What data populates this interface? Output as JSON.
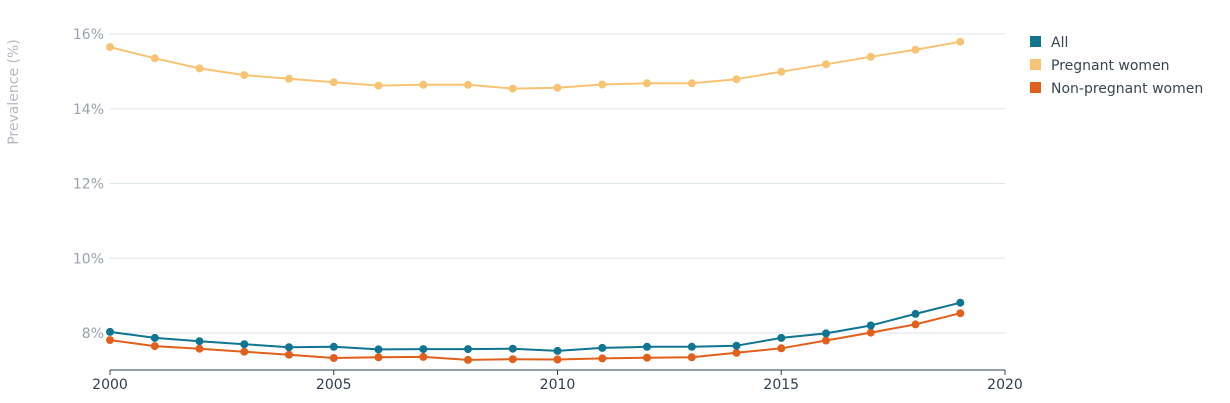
{
  "chart_data": {
    "type": "line",
    "title": "",
    "xlabel": "",
    "ylabel": "Prevalence (%)",
    "xlim": [
      2000,
      2020
    ],
    "ylim": [
      7,
      16.5
    ],
    "x_ticks": [
      2000,
      2005,
      2010,
      2015,
      2020
    ],
    "y_ticks": [
      8,
      10,
      12,
      14,
      16
    ],
    "y_tick_labels": [
      "8%",
      "10%",
      "12%",
      "14%",
      "16%"
    ],
    "grid": true,
    "legend_position": "top-right",
    "x": [
      2000,
      2001,
      2002,
      2003,
      2004,
      2005,
      2006,
      2007,
      2008,
      2009,
      2010,
      2011,
      2012,
      2013,
      2014,
      2015,
      2016,
      2017,
      2018,
      2019
    ],
    "series": [
      {
        "name": "All",
        "color": "#0f7591",
        "values": [
          8.03,
          7.87,
          7.78,
          7.7,
          7.62,
          7.63,
          7.56,
          7.57,
          7.57,
          7.58,
          7.52,
          7.6,
          7.63,
          7.63,
          7.66,
          7.87,
          7.99,
          8.2,
          8.51,
          8.81
        ]
      },
      {
        "name": "Pregnant women",
        "color": "#f9c374",
        "values": [
          15.65,
          15.35,
          15.08,
          14.9,
          14.8,
          14.71,
          14.62,
          14.64,
          14.64,
          14.54,
          14.56,
          14.65,
          14.68,
          14.68,
          14.79,
          14.99,
          15.19,
          15.39,
          15.58,
          15.79
        ]
      },
      {
        "name": "Non-pregnant women",
        "color": "#e2601b",
        "values": [
          7.81,
          7.65,
          7.58,
          7.5,
          7.42,
          7.33,
          7.35,
          7.36,
          7.28,
          7.3,
          7.29,
          7.32,
          7.34,
          7.35,
          7.47,
          7.59,
          7.8,
          8.01,
          8.23,
          8.53
        ]
      }
    ]
  }
}
